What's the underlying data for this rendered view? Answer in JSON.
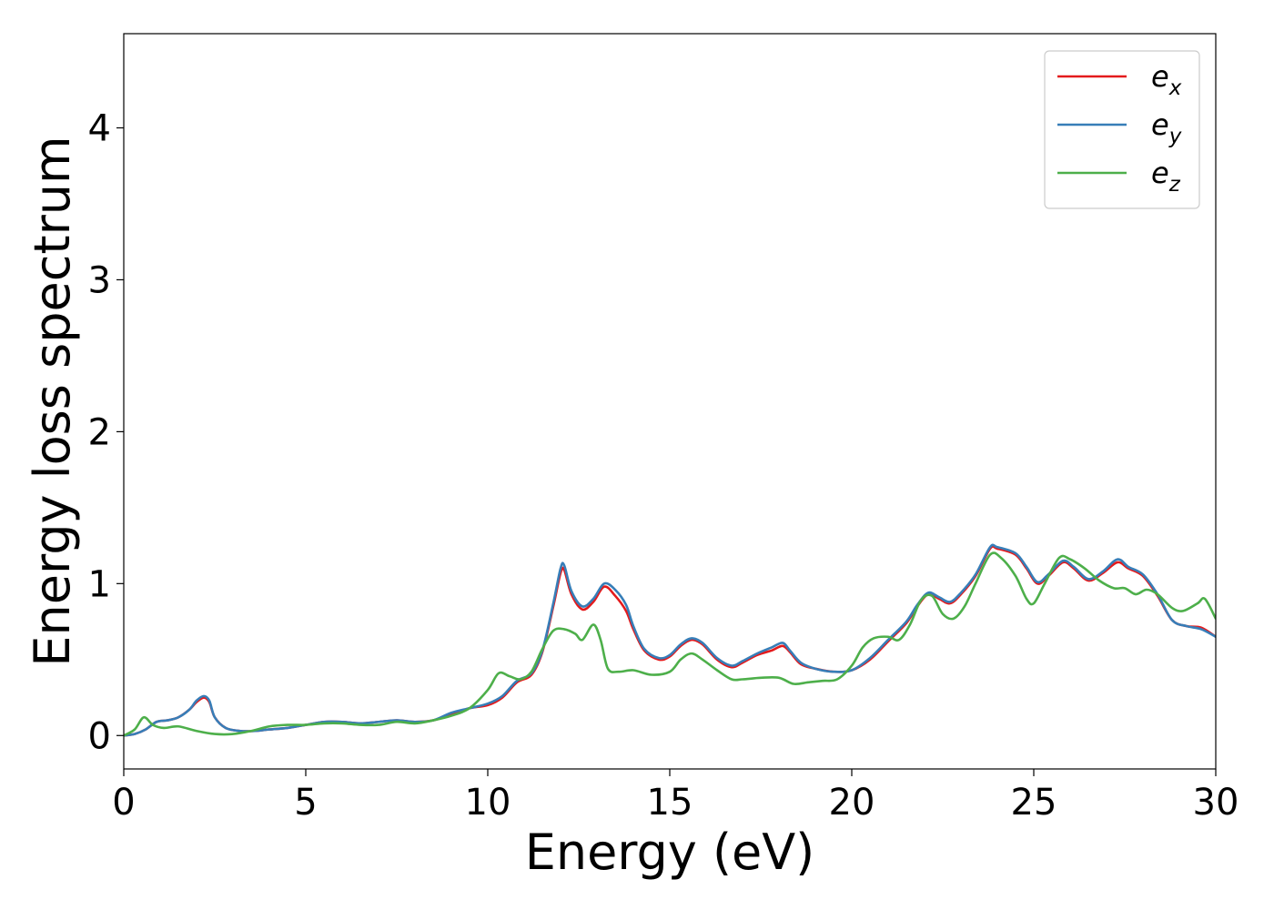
{
  "chart_data": {
    "type": "line",
    "xlabel": "Energy (eV)",
    "ylabel": "Energy loss spectrum",
    "xlim": [
      0,
      30
    ],
    "ylim": [
      -0.22,
      4.62
    ],
    "x_ticks": [
      "0",
      "5",
      "10",
      "15",
      "20",
      "25",
      "30"
    ],
    "y_ticks": [
      "0",
      "1",
      "2",
      "3",
      "4"
    ],
    "grid": false,
    "legend_position": "top-right",
    "series": [
      {
        "name": "e_x",
        "legend_base": "e",
        "legend_sub": "x",
        "color": "#e41a1c",
        "points": [
          [
            0,
            0
          ],
          [
            0.3,
            0.01
          ],
          [
            0.6,
            0.04
          ],
          [
            0.9,
            0.09
          ],
          [
            1.2,
            0.1
          ],
          [
            1.5,
            0.12
          ],
          [
            1.8,
            0.17
          ],
          [
            2.0,
            0.22
          ],
          [
            2.2,
            0.25
          ],
          [
            2.35,
            0.22
          ],
          [
            2.5,
            0.12
          ],
          [
            2.8,
            0.05
          ],
          [
            3.2,
            0.03
          ],
          [
            3.6,
            0.03
          ],
          [
            4.0,
            0.04
          ],
          [
            4.5,
            0.05
          ],
          [
            5.0,
            0.07
          ],
          [
            5.5,
            0.09
          ],
          [
            6.0,
            0.09
          ],
          [
            6.5,
            0.08
          ],
          [
            7.0,
            0.09
          ],
          [
            7.5,
            0.1
          ],
          [
            8.0,
            0.09
          ],
          [
            8.5,
            0.1
          ],
          [
            9.0,
            0.14
          ],
          [
            9.5,
            0.18
          ],
          [
            10.0,
            0.2
          ],
          [
            10.4,
            0.25
          ],
          [
            10.8,
            0.35
          ],
          [
            11.2,
            0.4
          ],
          [
            11.5,
            0.55
          ],
          [
            11.8,
            0.85
          ],
          [
            12.0,
            1.07
          ],
          [
            12.1,
            1.09
          ],
          [
            12.3,
            0.93
          ],
          [
            12.6,
            0.83
          ],
          [
            12.9,
            0.88
          ],
          [
            13.2,
            0.98
          ],
          [
            13.5,
            0.92
          ],
          [
            13.8,
            0.82
          ],
          [
            14.0,
            0.7
          ],
          [
            14.3,
            0.56
          ],
          [
            14.7,
            0.5
          ],
          [
            15.0,
            0.52
          ],
          [
            15.3,
            0.59
          ],
          [
            15.6,
            0.63
          ],
          [
            15.9,
            0.6
          ],
          [
            16.3,
            0.5
          ],
          [
            16.7,
            0.45
          ],
          [
            17.0,
            0.48
          ],
          [
            17.4,
            0.53
          ],
          [
            17.8,
            0.56
          ],
          [
            18.1,
            0.59
          ],
          [
            18.3,
            0.55
          ],
          [
            18.6,
            0.47
          ],
          [
            19.0,
            0.44
          ],
          [
            19.5,
            0.42
          ],
          [
            20.0,
            0.43
          ],
          [
            20.5,
            0.5
          ],
          [
            21.0,
            0.62
          ],
          [
            21.5,
            0.74
          ],
          [
            21.8,
            0.85
          ],
          [
            22.1,
            0.93
          ],
          [
            22.4,
            0.9
          ],
          [
            22.7,
            0.87
          ],
          [
            23.0,
            0.93
          ],
          [
            23.4,
            1.05
          ],
          [
            23.8,
            1.23
          ],
          [
            24.0,
            1.23
          ],
          [
            24.5,
            1.19
          ],
          [
            24.8,
            1.1
          ],
          [
            25.1,
            1.0
          ],
          [
            25.4,
            1.05
          ],
          [
            25.8,
            1.14
          ],
          [
            26.1,
            1.1
          ],
          [
            26.5,
            1.02
          ],
          [
            26.9,
            1.07
          ],
          [
            27.3,
            1.14
          ],
          [
            27.6,
            1.1
          ],
          [
            28.0,
            1.05
          ],
          [
            28.4,
            0.92
          ],
          [
            28.8,
            0.76
          ],
          [
            29.2,
            0.72
          ],
          [
            29.6,
            0.71
          ],
          [
            30.0,
            0.65
          ]
        ]
      },
      {
        "name": "e_y",
        "legend_base": "e",
        "legend_sub": "y",
        "color": "#377eb8",
        "points": [
          [
            0,
            0
          ],
          [
            0.3,
            0.01
          ],
          [
            0.6,
            0.04
          ],
          [
            0.9,
            0.09
          ],
          [
            1.2,
            0.1
          ],
          [
            1.5,
            0.12
          ],
          [
            1.8,
            0.17
          ],
          [
            2.0,
            0.23
          ],
          [
            2.2,
            0.26
          ],
          [
            2.35,
            0.23
          ],
          [
            2.5,
            0.12
          ],
          [
            2.8,
            0.05
          ],
          [
            3.2,
            0.03
          ],
          [
            3.6,
            0.03
          ],
          [
            4.0,
            0.04
          ],
          [
            4.5,
            0.05
          ],
          [
            5.0,
            0.07
          ],
          [
            5.5,
            0.09
          ],
          [
            6.0,
            0.09
          ],
          [
            6.5,
            0.08
          ],
          [
            7.0,
            0.09
          ],
          [
            7.5,
            0.1
          ],
          [
            8.0,
            0.09
          ],
          [
            8.5,
            0.1
          ],
          [
            9.0,
            0.15
          ],
          [
            9.5,
            0.18
          ],
          [
            10.0,
            0.21
          ],
          [
            10.4,
            0.26
          ],
          [
            10.8,
            0.36
          ],
          [
            11.2,
            0.41
          ],
          [
            11.5,
            0.56
          ],
          [
            11.8,
            0.87
          ],
          [
            12.0,
            1.1
          ],
          [
            12.1,
            1.12
          ],
          [
            12.3,
            0.95
          ],
          [
            12.6,
            0.85
          ],
          [
            12.9,
            0.9
          ],
          [
            13.2,
            1.0
          ],
          [
            13.5,
            0.96
          ],
          [
            13.8,
            0.86
          ],
          [
            14.0,
            0.72
          ],
          [
            14.3,
            0.57
          ],
          [
            14.7,
            0.51
          ],
          [
            15.0,
            0.53
          ],
          [
            15.3,
            0.6
          ],
          [
            15.6,
            0.64
          ],
          [
            15.9,
            0.61
          ],
          [
            16.3,
            0.51
          ],
          [
            16.7,
            0.46
          ],
          [
            17.0,
            0.49
          ],
          [
            17.4,
            0.54
          ],
          [
            17.8,
            0.58
          ],
          [
            18.1,
            0.61
          ],
          [
            18.3,
            0.56
          ],
          [
            18.6,
            0.48
          ],
          [
            19.0,
            0.44
          ],
          [
            19.5,
            0.42
          ],
          [
            20.0,
            0.43
          ],
          [
            20.5,
            0.51
          ],
          [
            21.0,
            0.63
          ],
          [
            21.5,
            0.75
          ],
          [
            21.8,
            0.86
          ],
          [
            22.1,
            0.94
          ],
          [
            22.4,
            0.91
          ],
          [
            22.7,
            0.88
          ],
          [
            23.0,
            0.94
          ],
          [
            23.4,
            1.06
          ],
          [
            23.8,
            1.24
          ],
          [
            24.0,
            1.24
          ],
          [
            24.5,
            1.2
          ],
          [
            24.8,
            1.11
          ],
          [
            25.1,
            1.01
          ],
          [
            25.4,
            1.06
          ],
          [
            25.8,
            1.15
          ],
          [
            26.1,
            1.11
          ],
          [
            26.5,
            1.03
          ],
          [
            26.9,
            1.08
          ],
          [
            27.3,
            1.16
          ],
          [
            27.6,
            1.11
          ],
          [
            28.0,
            1.06
          ],
          [
            28.4,
            0.93
          ],
          [
            28.8,
            0.76
          ],
          [
            29.2,
            0.72
          ],
          [
            29.6,
            0.7
          ],
          [
            30.0,
            0.65
          ]
        ]
      },
      {
        "name": "e_z",
        "legend_base": "e",
        "legend_sub": "z",
        "color": "#4daf4a",
        "points": [
          [
            0,
            0
          ],
          [
            0.3,
            0.04
          ],
          [
            0.55,
            0.12
          ],
          [
            0.8,
            0.07
          ],
          [
            1.1,
            0.05
          ],
          [
            1.5,
            0.06
          ],
          [
            2.0,
            0.03
          ],
          [
            2.5,
            0.01
          ],
          [
            3.0,
            0.01
          ],
          [
            3.5,
            0.03
          ],
          [
            4.0,
            0.06
          ],
          [
            4.5,
            0.07
          ],
          [
            5.0,
            0.07
          ],
          [
            5.5,
            0.08
          ],
          [
            6.0,
            0.08
          ],
          [
            6.5,
            0.07
          ],
          [
            7.0,
            0.07
          ],
          [
            7.5,
            0.09
          ],
          [
            8.0,
            0.08
          ],
          [
            8.5,
            0.1
          ],
          [
            9.0,
            0.13
          ],
          [
            9.5,
            0.18
          ],
          [
            10.0,
            0.3
          ],
          [
            10.3,
            0.41
          ],
          [
            10.6,
            0.39
          ],
          [
            10.9,
            0.37
          ],
          [
            11.2,
            0.42
          ],
          [
            11.5,
            0.57
          ],
          [
            11.8,
            0.69
          ],
          [
            12.1,
            0.7
          ],
          [
            12.4,
            0.67
          ],
          [
            12.6,
            0.63
          ],
          [
            12.9,
            0.73
          ],
          [
            13.1,
            0.63
          ],
          [
            13.3,
            0.44
          ],
          [
            13.6,
            0.42
          ],
          [
            14.0,
            0.43
          ],
          [
            14.5,
            0.4
          ],
          [
            15.0,
            0.42
          ],
          [
            15.3,
            0.5
          ],
          [
            15.6,
            0.54
          ],
          [
            15.9,
            0.5
          ],
          [
            16.3,
            0.43
          ],
          [
            16.7,
            0.37
          ],
          [
            17.0,
            0.37
          ],
          [
            17.5,
            0.38
          ],
          [
            18.0,
            0.38
          ],
          [
            18.4,
            0.34
          ],
          [
            18.8,
            0.35
          ],
          [
            19.2,
            0.36
          ],
          [
            19.6,
            0.37
          ],
          [
            20.0,
            0.46
          ],
          [
            20.3,
            0.58
          ],
          [
            20.6,
            0.64
          ],
          [
            21.0,
            0.65
          ],
          [
            21.3,
            0.63
          ],
          [
            21.6,
            0.73
          ],
          [
            21.9,
            0.89
          ],
          [
            22.2,
            0.92
          ],
          [
            22.5,
            0.8
          ],
          [
            22.8,
            0.77
          ],
          [
            23.1,
            0.85
          ],
          [
            23.4,
            1.0
          ],
          [
            23.8,
            1.19
          ],
          [
            24.1,
            1.17
          ],
          [
            24.5,
            1.05
          ],
          [
            24.8,
            0.9
          ],
          [
            25.0,
            0.87
          ],
          [
            25.3,
            1.0
          ],
          [
            25.7,
            1.17
          ],
          [
            26.0,
            1.16
          ],
          [
            26.4,
            1.1
          ],
          [
            26.8,
            1.02
          ],
          [
            27.2,
            0.97
          ],
          [
            27.5,
            0.97
          ],
          [
            27.8,
            0.93
          ],
          [
            28.1,
            0.96
          ],
          [
            28.4,
            0.93
          ],
          [
            28.8,
            0.84
          ],
          [
            29.1,
            0.82
          ],
          [
            29.5,
            0.87
          ],
          [
            29.7,
            0.9
          ],
          [
            30.0,
            0.77
          ]
        ]
      }
    ]
  }
}
